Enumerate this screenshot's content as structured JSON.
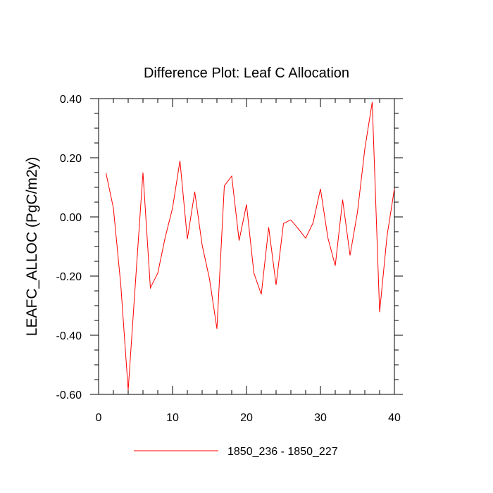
{
  "chart_data": {
    "type": "line",
    "title": "Difference Plot: Leaf C Allocation",
    "xlabel": "",
    "ylabel": "LEAFC_ALLOC  (PgC/m2y)",
    "xlim": [
      0,
      40
    ],
    "ylim": [
      -0.6,
      0.4
    ],
    "x_ticks": [
      0,
      10,
      20,
      30,
      40
    ],
    "x_tick_labels": [
      "0",
      "10",
      "20",
      "30",
      "40"
    ],
    "y_ticks": [
      0.4,
      0.2,
      0.0,
      -0.2,
      -0.4,
      -0.6
    ],
    "y_tick_labels": [
      "0.40",
      "0.20",
      "0.00",
      "-0.20",
      "-0.40",
      "-0.60"
    ],
    "grid": false,
    "legend_position": "bottom-center",
    "series": [
      {
        "name": "1850_236 - 1850_227",
        "color": "#ff0000",
        "x": [
          1,
          2,
          3,
          4,
          5,
          6,
          7,
          8,
          9,
          10,
          11,
          12,
          13,
          14,
          15,
          16,
          17,
          18,
          19,
          20,
          21,
          22,
          23,
          24,
          25,
          26,
          27,
          28,
          29,
          30,
          31,
          32,
          33,
          34,
          35,
          36,
          37,
          38,
          39,
          40
        ],
        "values": [
          0.148,
          0.03,
          -0.23,
          -0.585,
          -0.215,
          0.15,
          -0.24,
          -0.19,
          -0.07,
          0.03,
          0.19,
          -0.075,
          0.085,
          -0.095,
          -0.21,
          -0.378,
          0.105,
          0.138,
          -0.08,
          0.042,
          -0.19,
          -0.262,
          -0.035,
          -0.23,
          -0.022,
          -0.01,
          -0.04,
          -0.072,
          -0.02,
          0.095,
          -0.07,
          -0.165,
          0.058,
          -0.13,
          0.015,
          0.23,
          0.388,
          -0.322,
          -0.065,
          0.095
        ]
      }
    ]
  }
}
